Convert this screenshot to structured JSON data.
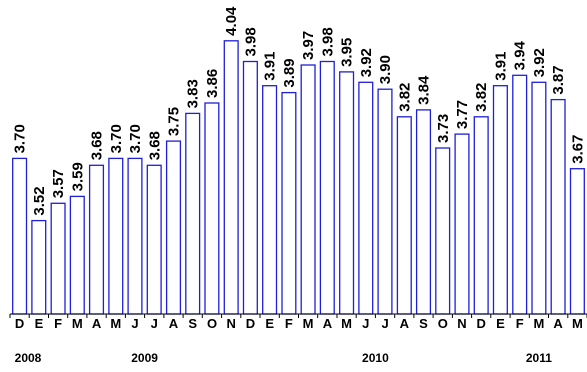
{
  "chart_data": {
    "type": "bar",
    "categories": [
      "D",
      "E",
      "F",
      "M",
      "A",
      "M",
      "J",
      "J",
      "A",
      "S",
      "O",
      "N",
      "D",
      "E",
      "F",
      "M",
      "A",
      "M",
      "J",
      "J",
      "A",
      "S",
      "O",
      "N",
      "D",
      "E",
      "F",
      "M",
      "A",
      "M"
    ],
    "values": [
      3.7,
      3.52,
      3.57,
      3.59,
      3.68,
      3.7,
      3.7,
      3.68,
      3.75,
      3.83,
      3.86,
      4.04,
      3.98,
      3.91,
      3.89,
      3.97,
      3.98,
      3.95,
      3.92,
      3.9,
      3.82,
      3.84,
      3.73,
      3.77,
      3.82,
      3.91,
      3.94,
      3.92,
      3.87,
      3.67
    ],
    "value_labels": [
      "3.70",
      "3.52",
      "3.57",
      "3.59",
      "3.68",
      "3.70",
      "3.70",
      "3.68",
      "3.75",
      "3.83",
      "3.86",
      "4.04",
      "3.98",
      "3.91",
      "3.89",
      "3.97",
      "3.98",
      "3.95",
      "3.92",
      "3.90",
      "3.82",
      "3.84",
      "3.73",
      "3.77",
      "3.82",
      "3.91",
      "3.94",
      "3.92",
      "3.87",
      "3.67"
    ],
    "years": [
      {
        "label": "2008",
        "start": 0,
        "end": 0
      },
      {
        "label": "2009",
        "start": 1,
        "end": 12
      },
      {
        "label": "2010",
        "start": 13,
        "end": 24
      },
      {
        "label": "2011",
        "start": 25,
        "end": 29
      }
    ],
    "ylim": [
      3.25,
      4.1
    ],
    "title": "",
    "xlabel": "",
    "ylabel": "",
    "grid": false,
    "legend": "none",
    "colors": {
      "bar_edge": "#1f1fd6",
      "bar_fill": "#ffffff"
    }
  }
}
